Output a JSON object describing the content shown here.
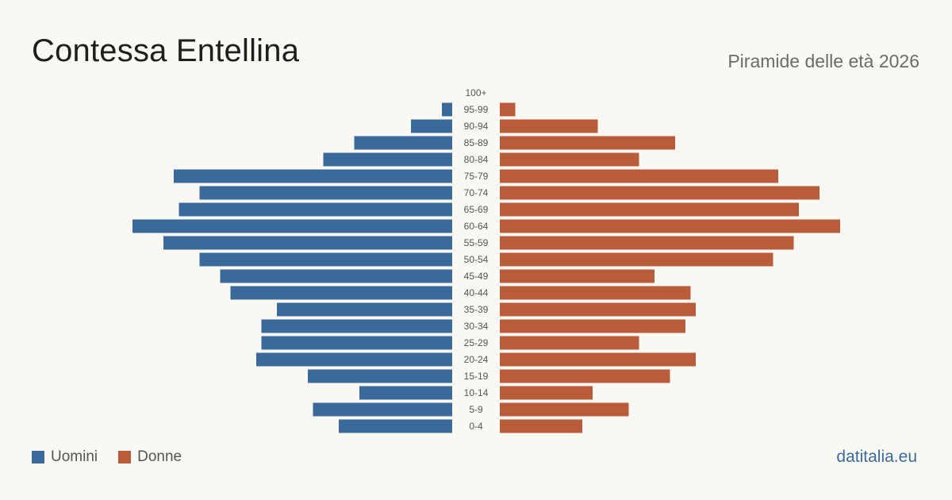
{
  "header": {
    "title": "Contessa Entellina",
    "subtitle": "Piramide delle età 2026"
  },
  "legend": {
    "men_label": "Uomini",
    "women_label": "Donne"
  },
  "brand": "datitalia.eu",
  "colors": {
    "background": "#faf8f3",
    "men": "#3a6a9a",
    "women": "#b85c3c",
    "age_label": "#555555"
  },
  "chart_data": {
    "type": "bar",
    "orientation": "horizontal-pyramid",
    "title": "Contessa Entellina",
    "subtitle": "Piramide delle età 2026",
    "categories": [
      "100+",
      "95-99",
      "90-94",
      "85-89",
      "80-84",
      "75-79",
      "70-74",
      "65-69",
      "60-64",
      "55-59",
      "50-54",
      "45-49",
      "40-44",
      "35-39",
      "30-34",
      "25-29",
      "20-24",
      "15-19",
      "10-14",
      "5-9",
      "0-4"
    ],
    "series": [
      {
        "name": "Uomini",
        "values": [
          0,
          2,
          8,
          19,
          25,
          54,
          49,
          53,
          62,
          56,
          49,
          45,
          43,
          34,
          37,
          37,
          38,
          28,
          18,
          27,
          22
        ]
      },
      {
        "name": "Donne",
        "values": [
          0,
          3,
          19,
          34,
          27,
          54,
          62,
          58,
          66,
          57,
          53,
          30,
          37,
          38,
          36,
          27,
          38,
          33,
          18,
          25,
          16
        ]
      }
    ],
    "legend_position": "bottom-left",
    "grid": false
  }
}
